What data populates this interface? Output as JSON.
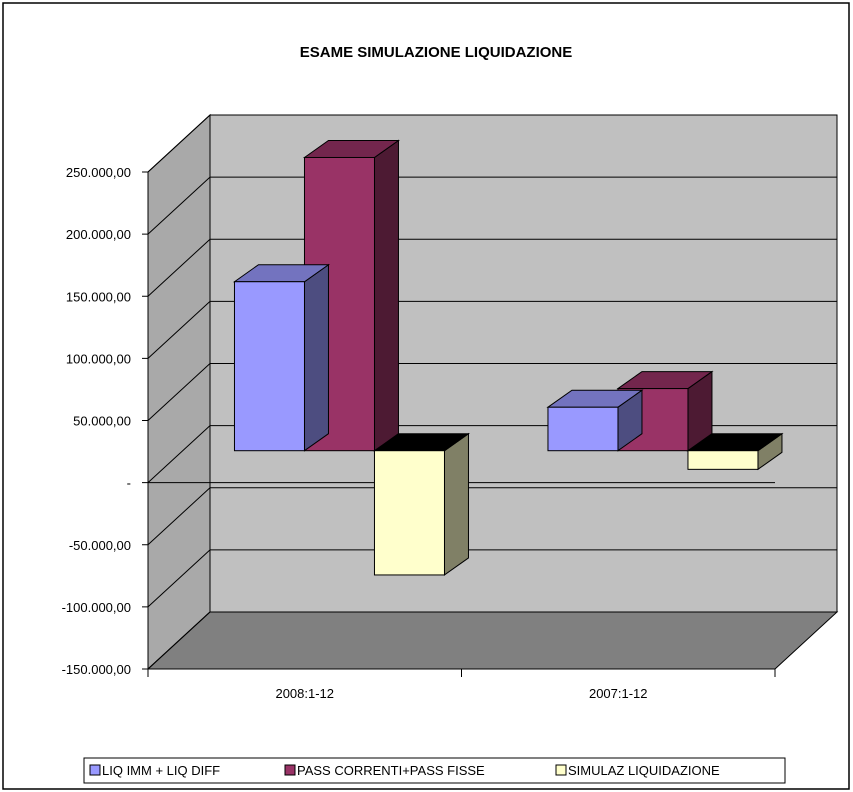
{
  "chart_data": {
    "type": "bar",
    "title": "ESAME SIMULAZIONE LIQUIDAZIONE",
    "categories": [
      "2008:1-12",
      "2007:1-12"
    ],
    "series": [
      {
        "name": "LIQ IMM + LIQ DIFF",
        "values": [
          136000,
          35000
        ],
        "color": "#9999FF"
      },
      {
        "name": "PASS CORRENTI+PASS FISSE",
        "values": [
          236000,
          50000
        ],
        "color": "#993366"
      },
      {
        "name": "SIMULAZ LIQUIDAZIONE",
        "values": [
          -100000,
          -15000
        ],
        "color": "#FFFFCC"
      }
    ],
    "ylim": [
      -150000,
      250000
    ],
    "y_ticks": [
      {
        "value": 250000,
        "label": "250.000,00"
      },
      {
        "value": 200000,
        "label": "200.000,00"
      },
      {
        "value": 150000,
        "label": "150.000,00"
      },
      {
        "value": 100000,
        "label": "100.000,00"
      },
      {
        "value": 50000,
        "label": "50.000,00"
      },
      {
        "value": 0,
        "label": "-"
      },
      {
        "value": -50000,
        "label": "-50.000,00"
      },
      {
        "value": -100000,
        "label": "-100.000,00"
      },
      {
        "value": -150000,
        "label": "-150.000,00"
      }
    ],
    "grid": true,
    "legend_position": "bottom",
    "wall_color": "#C0C0C0",
    "floor_color": "#808080"
  }
}
